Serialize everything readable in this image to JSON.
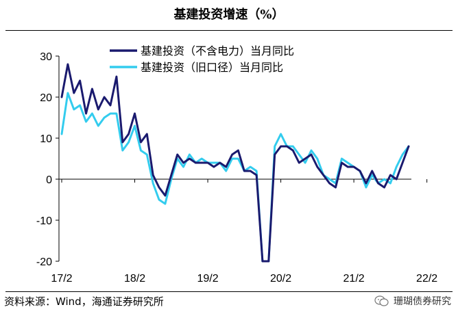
{
  "title": "基建投资增速（%）",
  "source": "资料来源：Wind，海通证券研究所",
  "watermark": "珊瑚债券研究",
  "colors": {
    "series1": "#1a1a6e",
    "series2": "#33ccee"
  },
  "chart_data": {
    "type": "line",
    "x_labels": [
      "17/2",
      "18/2",
      "19/2",
      "20/2",
      "21/2",
      "22/2"
    ],
    "ylim": [
      -20,
      30
    ],
    "yticks": [
      -20,
      -10,
      0,
      10,
      20,
      30
    ],
    "legend_position": "top",
    "series": [
      {
        "name": "基建投资（不含电力）当月同比",
        "values": [
          20,
          28,
          21,
          24,
          16,
          22,
          17,
          20,
          18,
          25,
          9,
          11,
          16,
          9,
          11,
          1,
          -2,
          -4,
          1,
          6,
          4,
          5,
          4,
          4,
          4,
          3,
          4,
          3,
          6,
          7,
          2,
          2,
          1,
          -20,
          -20,
          6,
          8,
          8,
          7,
          4,
          5,
          6,
          3,
          1,
          -1,
          -2,
          4,
          3,
          3,
          2,
          -1,
          2,
          -1,
          -2,
          1,
          0,
          4,
          8
        ],
        "x_start": "17/2"
      },
      {
        "name": "基建投资（旧口径）当月同比",
        "values": [
          11,
          21,
          17,
          18,
          14,
          16,
          13,
          15,
          16,
          16,
          7,
          9,
          13,
          7,
          6,
          -1,
          -5,
          -6,
          0,
          5,
          3,
          6,
          4,
          5,
          4,
          4,
          4,
          2,
          5,
          5,
          2,
          3,
          2,
          -20,
          -20,
          8,
          11,
          8,
          8,
          6,
          4,
          7,
          5,
          1,
          0,
          -1,
          5,
          4,
          3,
          2,
          -2,
          1,
          -1,
          0,
          -1,
          3,
          6,
          8
        ],
        "x_start": "17/2"
      }
    ]
  }
}
